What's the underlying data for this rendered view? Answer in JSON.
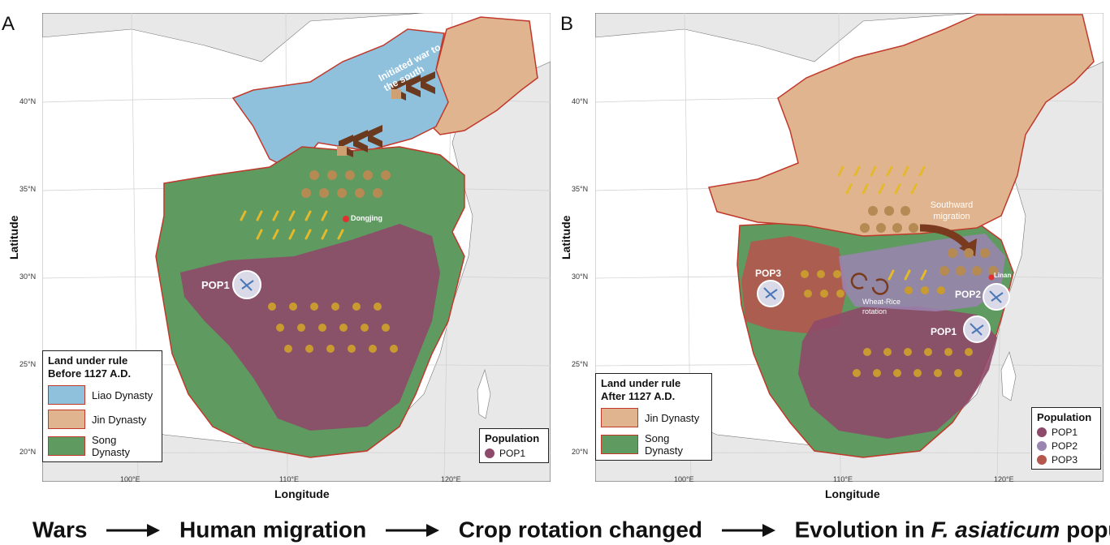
{
  "panels": {
    "a": {
      "letter": "A",
      "ylabel": "Latitude",
      "xlabel": "Longitude",
      "lat_ticks": [
        "40°N",
        "35°N",
        "30°N",
        "25°N",
        "20°N"
      ],
      "lon_ticks": [
        "100°E",
        "110°E",
        "120°E"
      ],
      "annotations": {
        "war": "Initiated war to the south",
        "dongjing": "Dongjing",
        "pop1": "POP1"
      },
      "legend": {
        "title_line1": "Land under rule",
        "title_line2": "Before 1127 A.D.",
        "items": [
          {
            "label": "Liao Dynasty",
            "color": "#8fc0dc"
          },
          {
            "label": "Jin Dynasty",
            "color": "#dfb48f"
          },
          {
            "label": "Song Dynasty",
            "color": "#5f9a60"
          }
        ]
      },
      "population": {
        "title": "Population",
        "items": [
          {
            "label": "POP1",
            "color": "#8e4a6a"
          }
        ]
      }
    },
    "b": {
      "letter": "B",
      "ylabel": "Latitude",
      "xlabel": "Longitude",
      "lat_ticks": [
        "40°N",
        "35°N",
        "30°N",
        "25°N",
        "20°N"
      ],
      "lon_ticks": [
        "100°E",
        "110°E",
        "120°E"
      ],
      "annotations": {
        "migration": "Southward migration",
        "rotation": "Wheat-Rice rotation",
        "linan": "Linan",
        "pop1": "POP1",
        "pop2": "POP2",
        "pop3": "POP3"
      },
      "legend": {
        "title_line1": "Land under rule",
        "title_line2": "After 1127 A.D.",
        "items": [
          {
            "label": "Jin Dynasty",
            "color": "#dfb48f"
          },
          {
            "label": "Song Dynasty",
            "color": "#5f9a60"
          }
        ]
      },
      "population": {
        "title": "Population",
        "items": [
          {
            "label": "POP1",
            "color": "#8e4a6a"
          },
          {
            "label": "POP2",
            "color": "#9b84b0"
          },
          {
            "label": "POP3",
            "color": "#b4584e"
          }
        ]
      }
    }
  },
  "flow": {
    "step1": "Wars",
    "step2": "Human migration",
    "step3": "Crop rotation changed",
    "step4_prefix": "Evolution in ",
    "step4_italic": "F. asiaticum",
    "step4_suffix": " population"
  },
  "colors": {
    "ocean": "#e8e8e8",
    "land": "#ffffff",
    "liao": "#8fc0dc",
    "jin": "#dfb48f",
    "song": "#5f9a60",
    "pop1": "#8e4a6a",
    "pop2": "#9b84b0",
    "pop3": "#b4584e",
    "border": "#c0392b"
  }
}
